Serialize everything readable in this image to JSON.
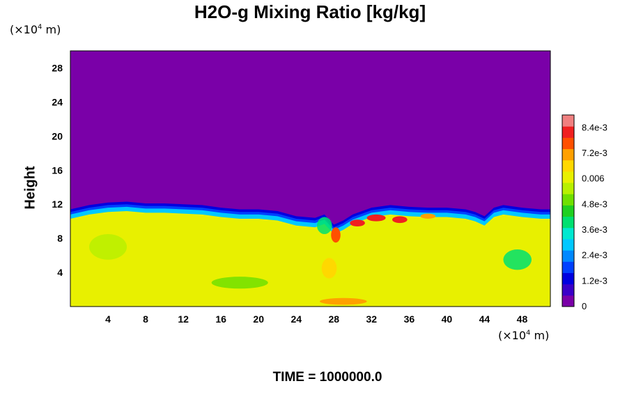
{
  "chart_data": {
    "type": "heatmap",
    "title": "H2O-g Mixing Ratio [kg/kg]",
    "ylabel": "Height",
    "xlabel": "",
    "x_unit_prefix": "(×10",
    "x_unit_exp": "4",
    "x_unit_suffix": " m)",
    "y_unit_prefix": "(×10",
    "y_unit_exp": "4",
    "y_unit_suffix": " m)",
    "xlim": [
      0,
      51
    ],
    "ylim": [
      0,
      30
    ],
    "x_ticks": [
      4,
      8,
      12,
      16,
      20,
      24,
      28,
      32,
      36,
      40,
      44,
      48
    ],
    "y_ticks": [
      4,
      8,
      12,
      16,
      20,
      24,
      28
    ],
    "colorbar": {
      "min": 0,
      "max": 0.009,
      "ticks": [
        {
          "value": 0,
          "label": "0"
        },
        {
          "value": 0.0012,
          "label": "1.2e-3"
        },
        {
          "value": 0.0024,
          "label": "2.4e-3"
        },
        {
          "value": 0.0036,
          "label": "3.6e-3"
        },
        {
          "value": 0.0048,
          "label": "4.8e-3"
        },
        {
          "value": 0.006,
          "label": "0.006"
        },
        {
          "value": 0.0072,
          "label": "7.2e-3"
        },
        {
          "value": 0.0084,
          "label": "8.4e-3"
        }
      ],
      "colors": [
        "#7a00a8",
        "#3a00c8",
        "#0000e0",
        "#0040ff",
        "#0088ff",
        "#00c8ff",
        "#00e8d0",
        "#00e070",
        "#20d020",
        "#70e000",
        "#b8f000",
        "#e8f000",
        "#ffd800",
        "#ffa000",
        "#ff5000",
        "#f02020",
        "#f08080"
      ]
    },
    "regions": {
      "upper_value": 0,
      "lower_value": 0.0063,
      "interface_height": [
        [
          0,
          10.8
        ],
        [
          2,
          11.3
        ],
        [
          4,
          11.6
        ],
        [
          6,
          11.7
        ],
        [
          8,
          11.5
        ],
        [
          10,
          11.5
        ],
        [
          12,
          11.4
        ],
        [
          14,
          11.3
        ],
        [
          16,
          11.0
        ],
        [
          18,
          10.8
        ],
        [
          20,
          10.8
        ],
        [
          22,
          10.6
        ],
        [
          24,
          10.0
        ],
        [
          26,
          9.8
        ],
        [
          27,
          10.2
        ],
        [
          28,
          9.0
        ],
        [
          29,
          9.5
        ],
        [
          30,
          10.2
        ],
        [
          32,
          11.0
        ],
        [
          34,
          11.3
        ],
        [
          36,
          11.1
        ],
        [
          38,
          11.0
        ],
        [
          40,
          11.0
        ],
        [
          42,
          10.8
        ],
        [
          43,
          10.5
        ],
        [
          44,
          10.0
        ],
        [
          45,
          11.0
        ],
        [
          46,
          11.3
        ],
        [
          48,
          11.0
        ],
        [
          50,
          10.8
        ],
        [
          51,
          10.8
        ]
      ],
      "moist_pockets": [
        {
          "x": 28.2,
          "y": 8.4,
          "rx": 0.5,
          "ry": 0.9,
          "value": 0.0078
        },
        {
          "x": 30.5,
          "y": 9.8,
          "rx": 0.8,
          "ry": 0.4,
          "value": 0.0082
        },
        {
          "x": 32.5,
          "y": 10.4,
          "rx": 1.0,
          "ry": 0.4,
          "value": 0.008
        },
        {
          "x": 35.0,
          "y": 10.2,
          "rx": 0.8,
          "ry": 0.4,
          "value": 0.0084
        },
        {
          "x": 38.0,
          "y": 10.6,
          "rx": 0.8,
          "ry": 0.3,
          "value": 0.0072
        },
        {
          "x": 29.0,
          "y": 0.6,
          "rx": 2.5,
          "ry": 0.4,
          "value": 0.0072
        },
        {
          "x": 27.5,
          "y": 4.5,
          "rx": 0.8,
          "ry": 1.2,
          "value": 0.0066
        }
      ],
      "dry_swirls": [
        {
          "x": 47.5,
          "y": 5.5,
          "rx": 1.5,
          "ry": 1.2,
          "value": 0.004
        },
        {
          "x": 4.0,
          "y": 7.0,
          "rx": 2.0,
          "ry": 1.5,
          "value": 0.0055
        },
        {
          "x": 18.0,
          "y": 2.8,
          "rx": 3.0,
          "ry": 0.7,
          "value": 0.0052
        },
        {
          "x": 27.0,
          "y": 9.5,
          "rx": 0.8,
          "ry": 1.0,
          "value": 0.0042
        }
      ]
    }
  },
  "footer": {
    "time_label": "TIME = 1000000.0"
  }
}
